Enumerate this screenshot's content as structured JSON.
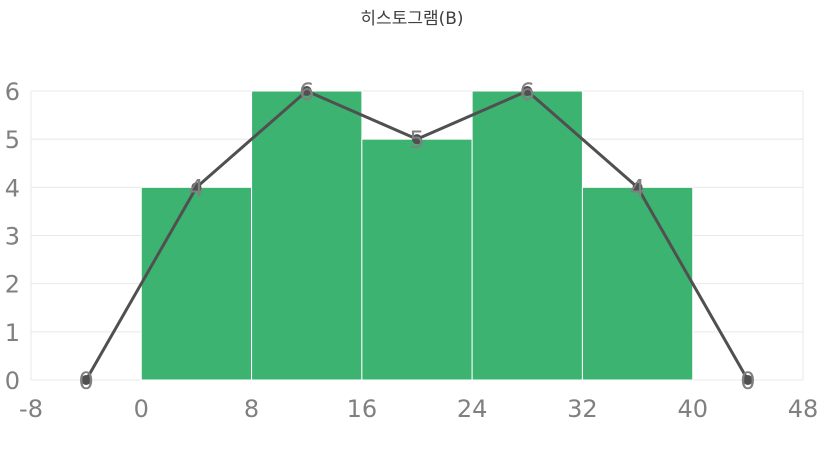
{
  "chart_data": {
    "type": "bar",
    "title": "히스토그램(B)",
    "xlabel": "",
    "ylabel": "",
    "xlim": [
      -8,
      48
    ],
    "ylim": [
      0,
      6
    ],
    "xticks": [
      "-8",
      "0",
      "8",
      "16",
      "24",
      "32",
      "40",
      "48"
    ],
    "yticks": [
      "0",
      "1",
      "2",
      "3",
      "4",
      "5",
      "6"
    ],
    "grid": true,
    "bins": [
      {
        "start": 0,
        "end": 8,
        "value": 4
      },
      {
        "start": 8,
        "end": 16,
        "value": 6
      },
      {
        "start": 16,
        "end": 24,
        "value": 5
      },
      {
        "start": 24,
        "end": 32,
        "value": 6
      },
      {
        "start": 32,
        "end": 40,
        "value": 4
      }
    ],
    "polygon": {
      "x": [
        -4,
        4,
        12,
        20,
        28,
        36,
        44
      ],
      "y": [
        0,
        4,
        6,
        5,
        6,
        4,
        0
      ],
      "labels": [
        "0",
        "4",
        "6",
        "5",
        "6",
        "4",
        "0"
      ]
    },
    "colors": {
      "bar": "#3cb371",
      "line": "#505050",
      "grid": "#e8e8e8",
      "tick_text": "#808080",
      "label_text": "#808080"
    }
  }
}
